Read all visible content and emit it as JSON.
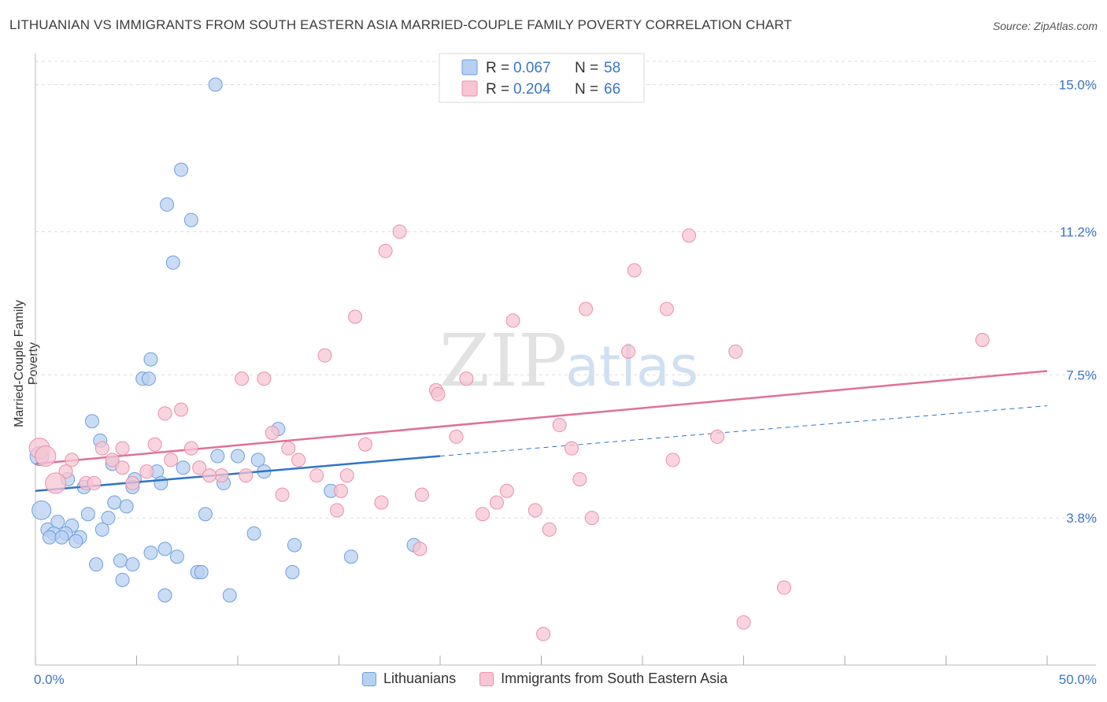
{
  "title": "LITHUANIAN VS IMMIGRANTS FROM SOUTH EASTERN ASIA MARRIED-COUPLE FAMILY POVERTY CORRELATION CHART",
  "source": "Source: ZipAtlas.com",
  "watermark": {
    "zip": "ZIP",
    "atlas": "atlas"
  },
  "colors": {
    "blue_fill": "#b8d0f0",
    "blue_stroke": "#6d9ee0",
    "blue_line": "#2f74c7",
    "pink_fill": "#f7c5d3",
    "pink_stroke": "#ea8fab",
    "pink_line": "#e0709a",
    "tick_text": "#3a75c4",
    "grid": "#dddddd"
  },
  "legend": {
    "r_label": "R =",
    "n_label": "N =",
    "items": [
      {
        "name": "Lithuanians",
        "r": "0.067",
        "n": "58"
      },
      {
        "name": "Immigrants from South Eastern Asia",
        "r": "0.204",
        "n": "66"
      }
    ]
  },
  "chart_data": {
    "type": "scatter",
    "title": "LITHUANIAN VS IMMIGRANTS FROM SOUTH EASTERN ASIA MARRIED-COUPLE FAMILY POVERTY CORRELATION CHART",
    "xlabel": "",
    "ylabel": "Married-Couple Family Poverty",
    "xlim": [
      0,
      50
    ],
    "ylim": [
      0,
      15.6
    ],
    "x_tick_labels": [
      "0.0%",
      "50.0%"
    ],
    "y_ticks": [
      3.8,
      7.5,
      11.2,
      15.0
    ],
    "y_tick_labels": [
      "3.8%",
      "7.5%",
      "11.2%",
      "15.0%"
    ],
    "grid": true,
    "series": [
      {
        "name": "Lithuanians",
        "points": [
          [
            8.9,
            15.0
          ],
          [
            7.2,
            12.8
          ],
          [
            6.5,
            11.9
          ],
          [
            7.7,
            11.5
          ],
          [
            6.8,
            10.4
          ],
          [
            5.7,
            7.9
          ],
          [
            5.3,
            7.4
          ],
          [
            5.6,
            7.4
          ],
          [
            2.8,
            6.3
          ],
          [
            3.2,
            5.8
          ],
          [
            12.0,
            6.1
          ],
          [
            0.2,
            5.4
          ],
          [
            9.0,
            5.4
          ],
          [
            11.0,
            5.3
          ],
          [
            10.0,
            5.4
          ],
          [
            3.8,
            5.2
          ],
          [
            7.3,
            5.1
          ],
          [
            6.0,
            5.0
          ],
          [
            4.9,
            4.8
          ],
          [
            11.3,
            5.0
          ],
          [
            1.6,
            4.8
          ],
          [
            2.4,
            4.6
          ],
          [
            4.8,
            4.6
          ],
          [
            6.2,
            4.7
          ],
          [
            9.3,
            4.7
          ],
          [
            14.6,
            4.5
          ],
          [
            3.9,
            4.2
          ],
          [
            4.5,
            4.1
          ],
          [
            0.3,
            4.0
          ],
          [
            3.6,
            3.8
          ],
          [
            2.6,
            3.9
          ],
          [
            8.4,
            3.9
          ],
          [
            1.1,
            3.7
          ],
          [
            1.8,
            3.6
          ],
          [
            3.3,
            3.5
          ],
          [
            0.6,
            3.5
          ],
          [
            0.9,
            3.4
          ],
          [
            1.5,
            3.4
          ],
          [
            2.2,
            3.3
          ],
          [
            0.7,
            3.3
          ],
          [
            1.3,
            3.3
          ],
          [
            10.8,
            3.4
          ],
          [
            2.0,
            3.2
          ],
          [
            12.8,
            3.1
          ],
          [
            18.7,
            3.1
          ],
          [
            6.4,
            3.0
          ],
          [
            5.7,
            2.9
          ],
          [
            7.0,
            2.8
          ],
          [
            15.6,
            2.8
          ],
          [
            4.2,
            2.7
          ],
          [
            3.0,
            2.6
          ],
          [
            4.8,
            2.6
          ],
          [
            8.0,
            2.4
          ],
          [
            8.2,
            2.4
          ],
          [
            12.7,
            2.4
          ],
          [
            4.3,
            2.2
          ],
          [
            6.4,
            1.8
          ],
          [
            9.6,
            1.8
          ]
        ],
        "trend": {
          "x": [
            0,
            20
          ],
          "y": [
            4.5,
            5.4
          ]
        },
        "trend_extension": {
          "x": [
            20,
            50
          ],
          "y": [
            5.4,
            6.7
          ]
        }
      },
      {
        "name": "Immigrants from South Eastern Asia",
        "points": [
          [
            18.0,
            11.2
          ],
          [
            17.3,
            10.7
          ],
          [
            32.3,
            11.1
          ],
          [
            29.6,
            10.2
          ],
          [
            27.2,
            9.2
          ],
          [
            31.2,
            9.2
          ],
          [
            15.8,
            9.0
          ],
          [
            23.6,
            8.9
          ],
          [
            14.3,
            8.0
          ],
          [
            29.3,
            8.1
          ],
          [
            34.6,
            8.1
          ],
          [
            46.8,
            8.4
          ],
          [
            10.2,
            7.4
          ],
          [
            11.3,
            7.4
          ],
          [
            21.3,
            7.4
          ],
          [
            19.8,
            7.1
          ],
          [
            19.9,
            7.0
          ],
          [
            7.2,
            6.6
          ],
          [
            6.4,
            6.5
          ],
          [
            25.9,
            6.2
          ],
          [
            11.7,
            6.0
          ],
          [
            33.7,
            5.9
          ],
          [
            20.8,
            5.9
          ],
          [
            0.2,
            5.6
          ],
          [
            5.9,
            5.7
          ],
          [
            16.3,
            5.7
          ],
          [
            4.3,
            5.6
          ],
          [
            7.7,
            5.6
          ],
          [
            12.5,
            5.6
          ],
          [
            26.5,
            5.6
          ],
          [
            3.3,
            5.6
          ],
          [
            1.8,
            5.3
          ],
          [
            3.8,
            5.3
          ],
          [
            6.7,
            5.3
          ],
          [
            13.0,
            5.3
          ],
          [
            31.5,
            5.3
          ],
          [
            4.3,
            5.1
          ],
          [
            8.1,
            5.1
          ],
          [
            1.5,
            5.0
          ],
          [
            5.5,
            5.0
          ],
          [
            9.2,
            4.9
          ],
          [
            10.4,
            4.9
          ],
          [
            13.9,
            4.9
          ],
          [
            15.4,
            4.9
          ],
          [
            8.6,
            4.9
          ],
          [
            26.9,
            4.8
          ],
          [
            1.0,
            4.7
          ],
          [
            2.5,
            4.7
          ],
          [
            4.8,
            4.7
          ],
          [
            23.3,
            4.5
          ],
          [
            15.1,
            4.5
          ],
          [
            12.2,
            4.4
          ],
          [
            19.1,
            4.4
          ],
          [
            17.1,
            4.2
          ],
          [
            22.8,
            4.2
          ],
          [
            24.7,
            4.0
          ],
          [
            22.1,
            3.9
          ],
          [
            27.5,
            3.8
          ],
          [
            25.4,
            3.5
          ],
          [
            19.0,
            3.0
          ],
          [
            37.0,
            2.0
          ],
          [
            35.0,
            1.1
          ],
          [
            25.1,
            0.8
          ],
          [
            0.5,
            5.4
          ],
          [
            2.9,
            4.7
          ],
          [
            14.9,
            4.0
          ]
        ],
        "trend": {
          "x": [
            0,
            50
          ],
          "y": [
            5.2,
            7.6
          ]
        }
      }
    ]
  }
}
